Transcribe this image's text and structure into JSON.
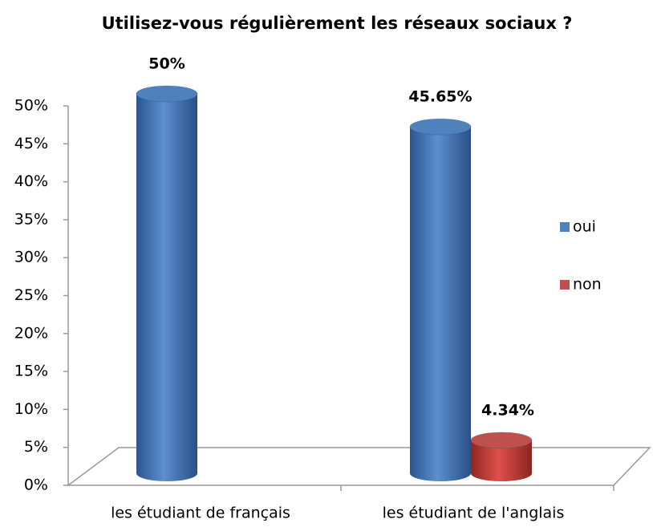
{
  "chart_data": {
    "type": "bar3d",
    "title": "Utilisez-vous régulièrement les réseaux sociaux ?",
    "categories": [
      "les étudiant de français",
      "les étudiant de l'anglais"
    ],
    "series": [
      {
        "name": "oui",
        "color": "#4f81bd",
        "values": [
          50,
          45.65
        ],
        "value_labels": [
          "50%",
          "45.65%"
        ]
      },
      {
        "name": "non",
        "color": "#c0504d",
        "values": [
          null,
          4.34
        ],
        "value_labels": [
          null,
          "4.34%"
        ]
      }
    ],
    "ylim": [
      0,
      50
    ],
    "yticks": [
      {
        "value": 0,
        "label": "0%"
      },
      {
        "value": 5,
        "label": "5%"
      },
      {
        "value": 10,
        "label": "10%"
      },
      {
        "value": 15,
        "label": "15%"
      },
      {
        "value": 20,
        "label": "20%"
      },
      {
        "value": 25,
        "label": "25%"
      },
      {
        "value": 30,
        "label": "30%"
      },
      {
        "value": 35,
        "label": "35%"
      },
      {
        "value": 40,
        "label": "40%"
      },
      {
        "value": 45,
        "label": "45%"
      },
      {
        "value": 50,
        "label": "50%"
      }
    ],
    "legend": "right"
  }
}
